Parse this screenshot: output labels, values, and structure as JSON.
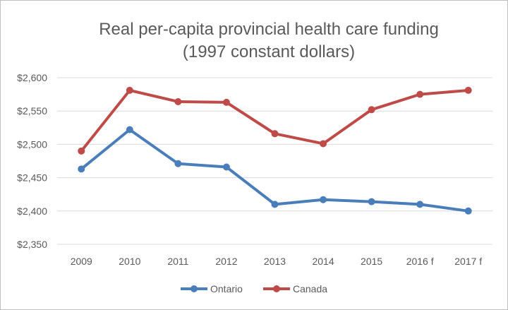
{
  "chart_data": {
    "type": "line",
    "title": [
      "Real per-capita provincial health care funding",
      "(1997 constant dollars)"
    ],
    "xlabel": "",
    "ylabel": "",
    "categories": [
      "2009",
      "2010",
      "2011",
      "2012",
      "2013",
      "2014",
      "2015",
      "2016 f",
      "2017 f"
    ],
    "y_ticks": [
      "$2,350",
      "$2,400",
      "$2,450",
      "$2,500",
      "$2,550",
      "$2,600"
    ],
    "y_tick_values": [
      2350,
      2400,
      2450,
      2500,
      2550,
      2600
    ],
    "ylim": [
      2350,
      2600
    ],
    "grid": "horizontal",
    "legend": "bottom",
    "series": [
      {
        "name": "Ontario",
        "color": "#4a7ebb",
        "values": [
          2463,
          2522,
          2471,
          2466,
          2410,
          2417,
          2414,
          2410,
          2400
        ]
      },
      {
        "name": "Canada",
        "color": "#be4b48",
        "values": [
          2490,
          2581,
          2564,
          2563,
          2516,
          2501,
          2552,
          2575,
          2581
        ]
      }
    ]
  }
}
